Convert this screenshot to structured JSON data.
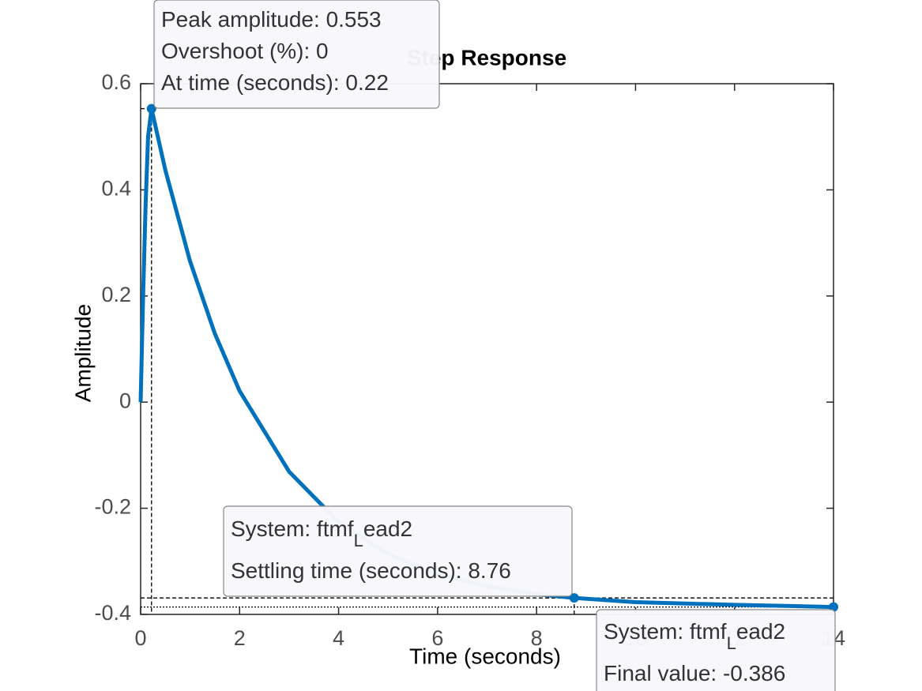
{
  "chart_data": {
    "type": "line",
    "title": "Step Response",
    "xlabel": "Time (seconds)",
    "ylabel": "Amplitude",
    "x": [
      0,
      0.05,
      0.1,
      0.15,
      0.22,
      0.5,
      1,
      1.5,
      2,
      3,
      4,
      5,
      6,
      7,
      8,
      8.76,
      10,
      12,
      14
    ],
    "series": [
      {
        "color": "#0072bd",
        "values": [
          0,
          0.2,
          0.37,
          0.5,
          0.553,
          0.437,
          0.265,
          0.129,
          0.021,
          -0.131,
          -0.226,
          -0.286,
          -0.324,
          -0.347,
          -0.362,
          -0.369,
          -0.377,
          -0.382,
          -0.386
        ]
      }
    ],
    "xlim": [
      0,
      14
    ],
    "xticks": [
      0,
      2,
      4,
      6,
      8,
      10,
      12,
      14
    ],
    "ylim": [
      -0.4,
      0.6
    ],
    "yticks": [
      -0.4,
      -0.2,
      0,
      0.2,
      0.4,
      0.6
    ],
    "grid": false,
    "annotations": [
      {
        "x": 0.22,
        "y": 0.553,
        "lines": [
          {
            "text": "Peak amplitude: 0.553"
          },
          {
            "text": "Overshoot (%): 0"
          },
          {
            "text": "At time (seconds): 0.22"
          }
        ]
      },
      {
        "x": 8.76,
        "y": -0.369,
        "lines": [
          {
            "text": "System: ftmf",
            "sub": "L",
            "after": "ead2"
          },
          {
            "text": "Settling time (seconds): 8.76"
          }
        ]
      },
      {
        "x": 14,
        "y": -0.386,
        "lines": [
          {
            "text": "System: ftmf",
            "sub": "L",
            "after": "ead2"
          },
          {
            "text": "Final value: -0.386"
          }
        ]
      }
    ]
  }
}
